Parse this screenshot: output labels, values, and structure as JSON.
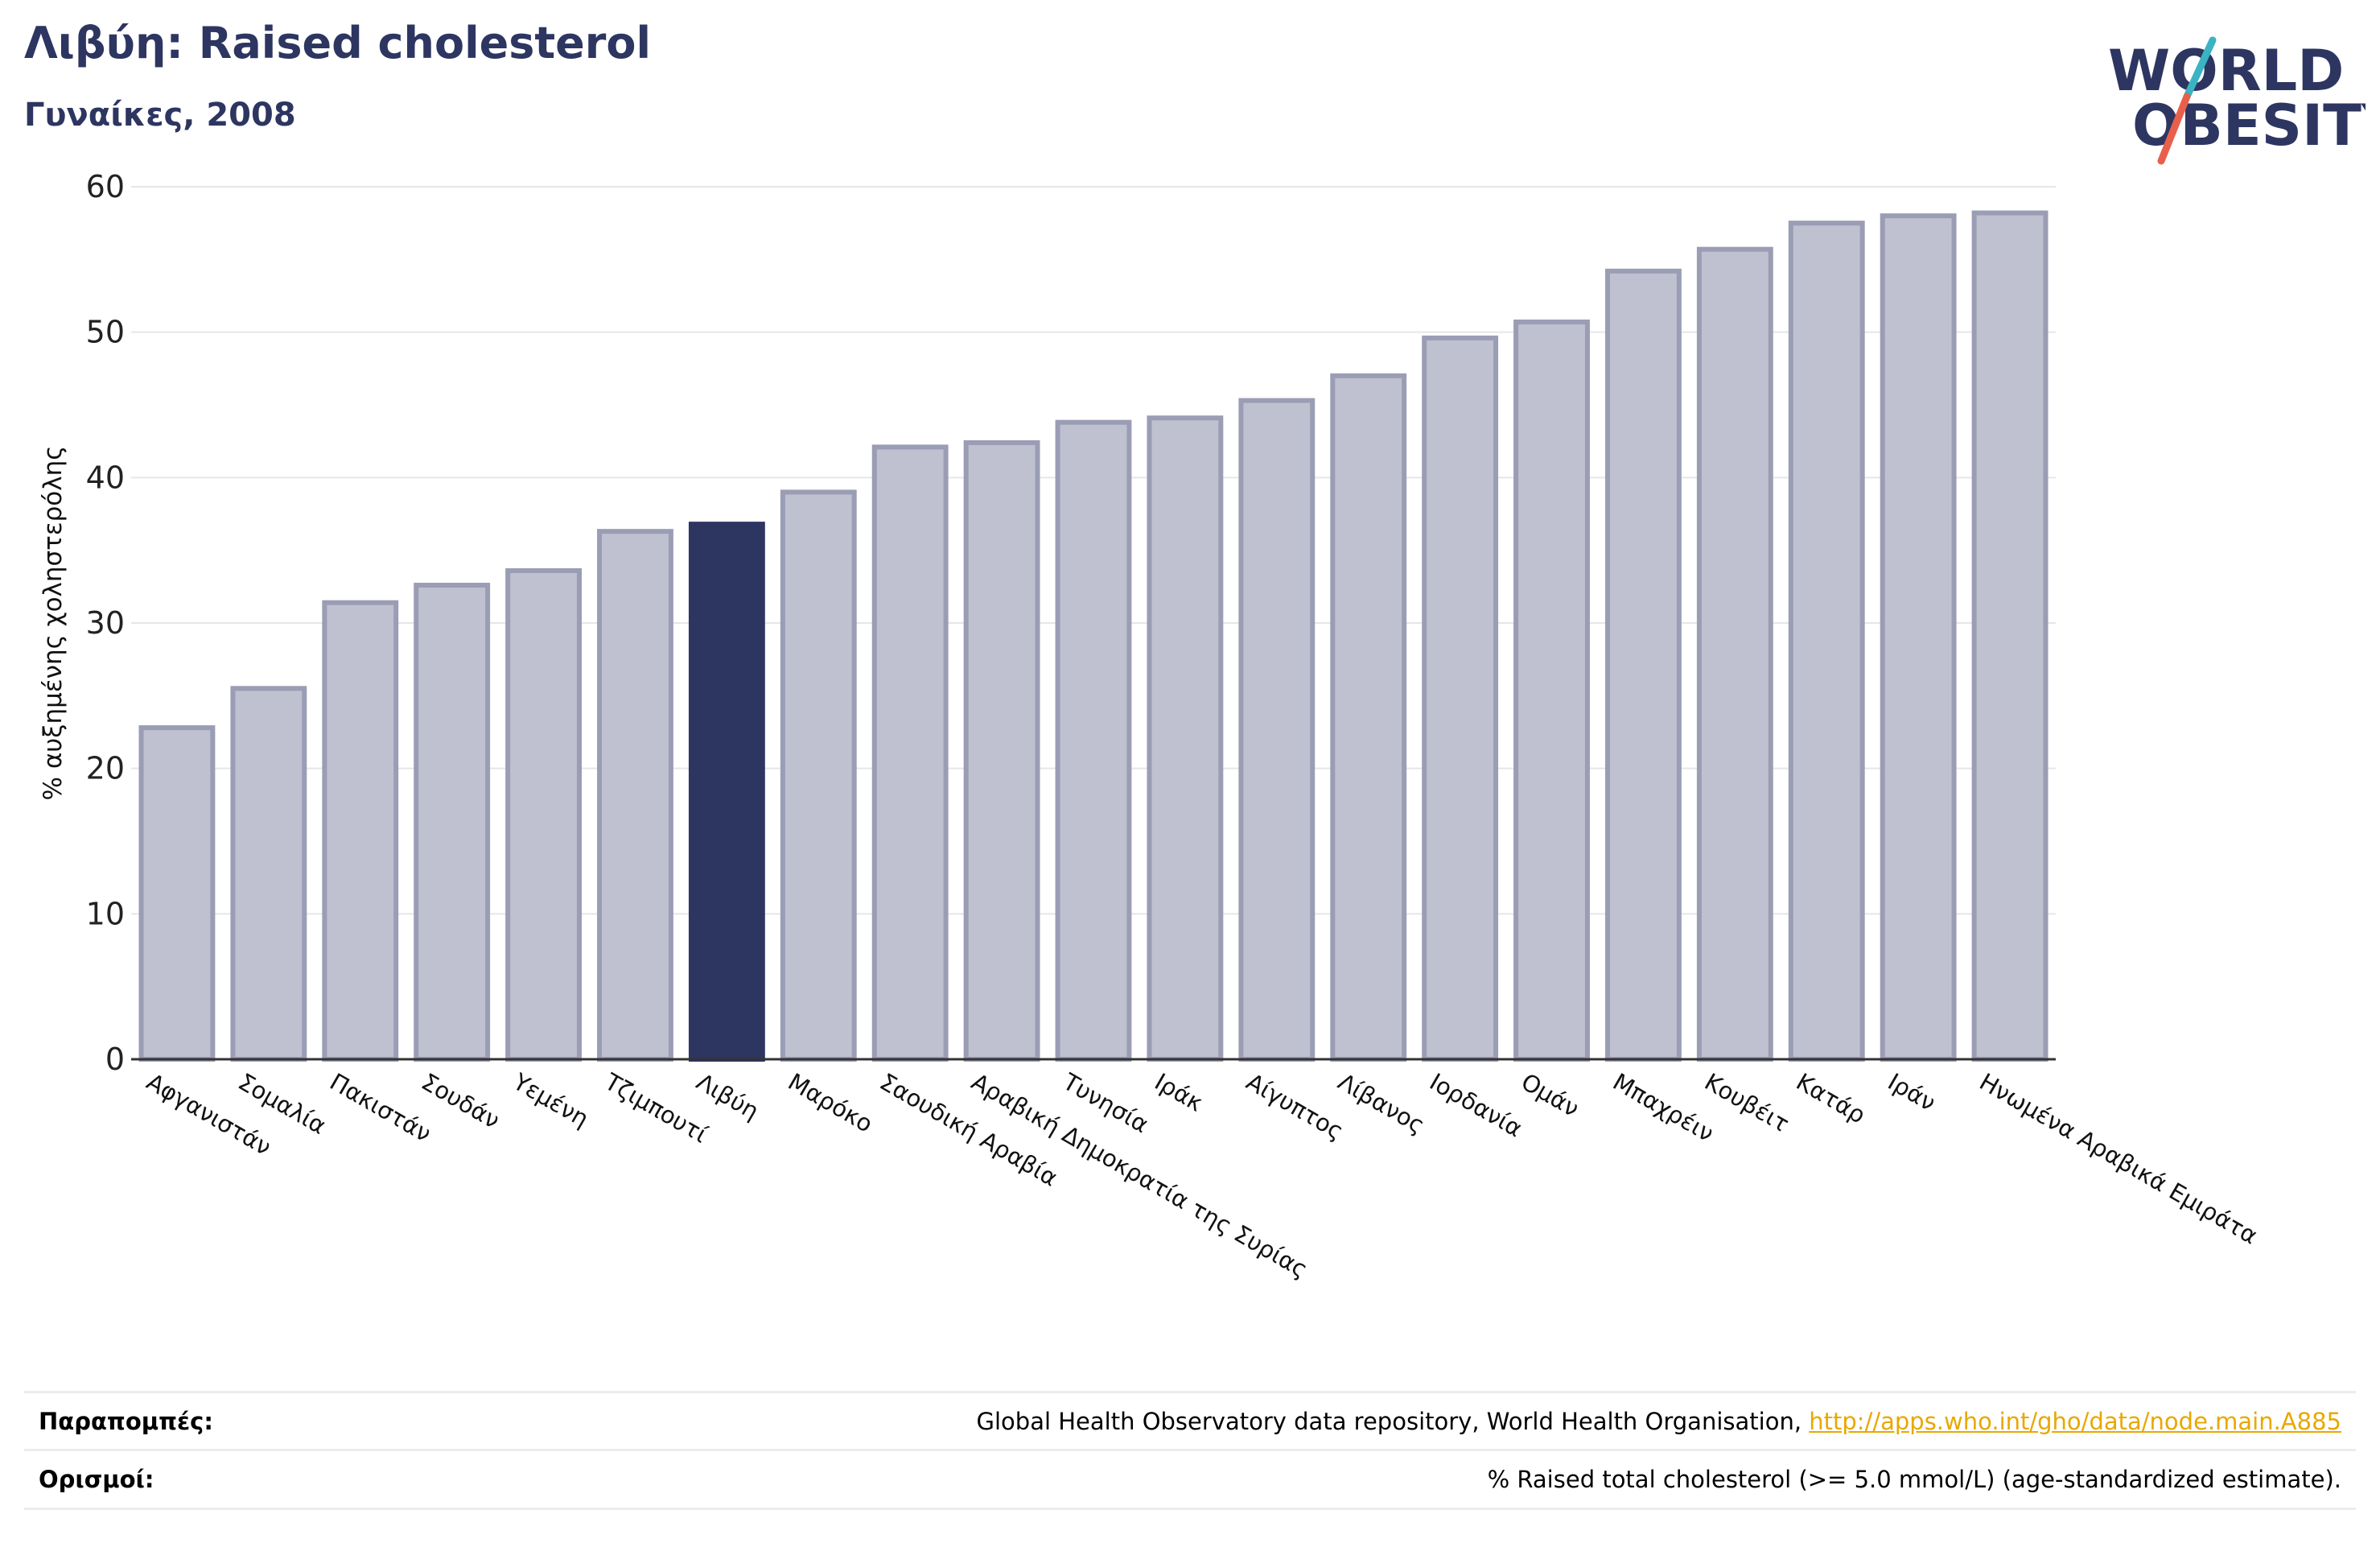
{
  "header": {
    "title": "Λιβύη: Raised cholesterol",
    "subtitle": "Γυναίκες, 2008"
  },
  "logo": {
    "line1": "WORLD",
    "line2": "OBESITY",
    "colors": {
      "text": "#2d3561",
      "slash_red": "#e8604c",
      "slash_teal": "#3bb3c3"
    }
  },
  "colors": {
    "bar": "#bfc1d0",
    "bar_border": "#9a9db4",
    "highlight": "#2d3561",
    "grid": "#e6e6e6",
    "axis": "#333333"
  },
  "chart_data": {
    "type": "bar",
    "title": "Λιβύη: Raised cholesterol",
    "subtitle": "Γυναίκες, 2008",
    "ylabel": "% αυξημένης χοληστερόλης",
    "xlabel": "",
    "ylim": [
      0,
      60
    ],
    "yticks": [
      0,
      10,
      20,
      30,
      40,
      50,
      60
    ],
    "grid": true,
    "highlight": "Λιβύη",
    "categories": [
      "Αφγανιστάν",
      "Σομαλία",
      "Πακιστάν",
      "Σουδάν",
      "Υεμένη",
      "Τζιμπουτί",
      "Λιβύη",
      "Μαρόκο",
      "Σαουδική Αραβία",
      "Αραβική Δημοκρατία της Συρίας",
      "Τυνησία",
      "Ιράκ",
      "Αίγυπτος",
      "Λίβανος",
      "Ιορδανία",
      "Ομάν",
      "Μπαχρέιν",
      "Κουβέιτ",
      "Κατάρ",
      "Ιράν",
      "Ηνωμένα Αραβικά Εμιράτα"
    ],
    "values": [
      22.8,
      25.5,
      31.4,
      32.6,
      33.6,
      36.3,
      36.8,
      39.0,
      42.1,
      42.4,
      43.8,
      44.1,
      45.3,
      47.0,
      49.6,
      50.7,
      54.2,
      55.7,
      57.5,
      58.0,
      58.2
    ]
  },
  "footer": {
    "references_label": "Παραπομπές:",
    "references_text": "Global Health Observatory data repository, World Health Organisation, ",
    "references_link": "http://apps.who.int/gho/data/node.main.A885",
    "definitions_label": "Ορισμοί:",
    "definitions_text": "% Raised total cholesterol (>= 5.0 mmol/L) (age-standardized estimate)."
  }
}
